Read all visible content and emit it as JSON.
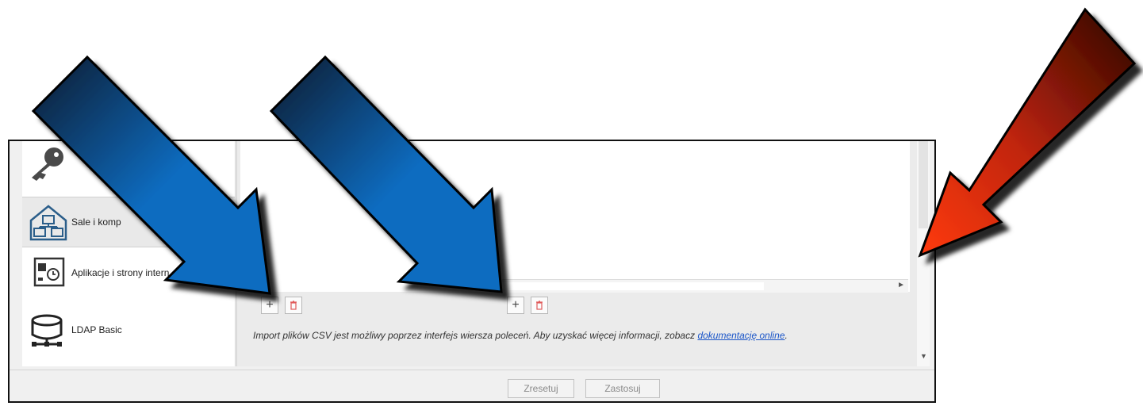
{
  "sidebar": {
    "items": [
      {
        "label": "",
        "icon": "key-icon"
      },
      {
        "label": "Sale i komp",
        "icon": "network-rooms-icon"
      },
      {
        "label": "Aplikacje i strony intern",
        "icon": "app-web-icon"
      },
      {
        "label": "LDAP Basic",
        "icon": "ldap-database-icon"
      }
    ]
  },
  "content": {
    "note_text": "Import plików CSV jest możliwy poprzez interfejs wiersza poleceń. Aby uzyskać więcej informacji, zobacz ",
    "note_link": "dokumentację online",
    "note_end": "."
  },
  "footer": {
    "reset_label": "Zresetuj",
    "apply_label": "Zastosuj"
  },
  "colors": {
    "blue_arrow": "#0c6cc0",
    "red_arrow": "#e03010"
  }
}
